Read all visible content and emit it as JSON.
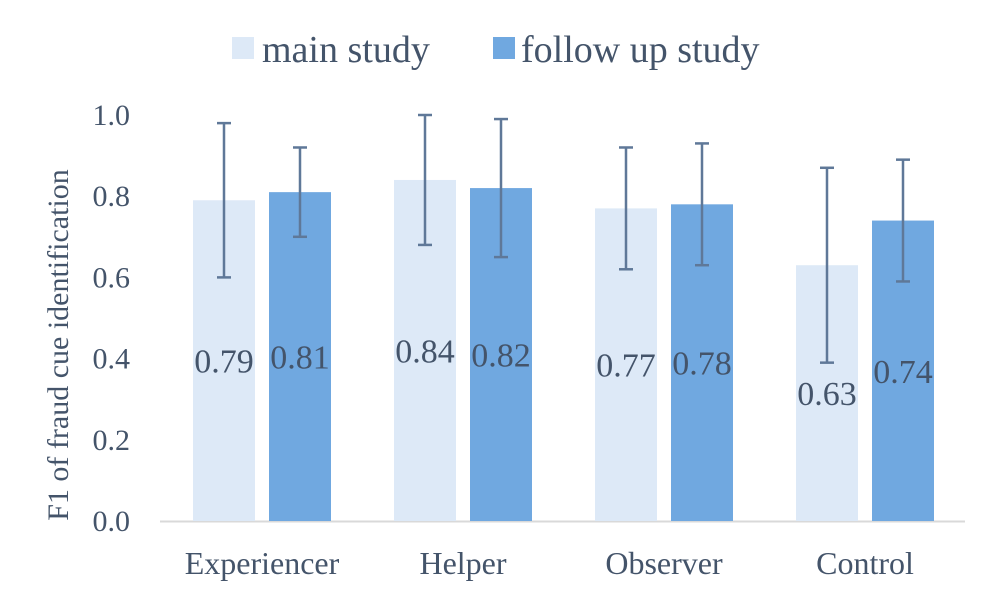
{
  "chart_data": {
    "type": "bar",
    "title": "",
    "xlabel": "",
    "ylabel": "F1 of fraud cue identification",
    "ylim": [
      0,
      1.0
    ],
    "yticks": [
      "0.0",
      "0.2",
      "0.4",
      "0.6",
      "0.8",
      "1.0"
    ],
    "categories": [
      "Experiencer",
      "Helper",
      "Observer",
      "Control"
    ],
    "legend_position": "top",
    "series": [
      {
        "name": "main study",
        "color": "#dde9f7",
        "values": [
          0.79,
          0.84,
          0.77,
          0.63
        ],
        "labels": [
          "0.79",
          "0.84",
          "0.77",
          "0.63"
        ],
        "error_low": [
          0.6,
          0.68,
          0.62,
          0.39
        ],
        "error_high": [
          0.98,
          1.0,
          0.92,
          0.87
        ]
      },
      {
        "name": "follow up study",
        "color": "#70a8e0",
        "values": [
          0.81,
          0.82,
          0.78,
          0.74
        ],
        "labels": [
          "0.81",
          "0.82",
          "0.78",
          "0.74"
        ],
        "error_low": [
          0.7,
          0.65,
          0.63,
          0.59
        ],
        "error_high": [
          0.92,
          0.99,
          0.93,
          0.89
        ]
      }
    ],
    "error_bar_color": "#5f7898",
    "axis_color": "#d9d9d9",
    "text_color": "#44546a"
  }
}
